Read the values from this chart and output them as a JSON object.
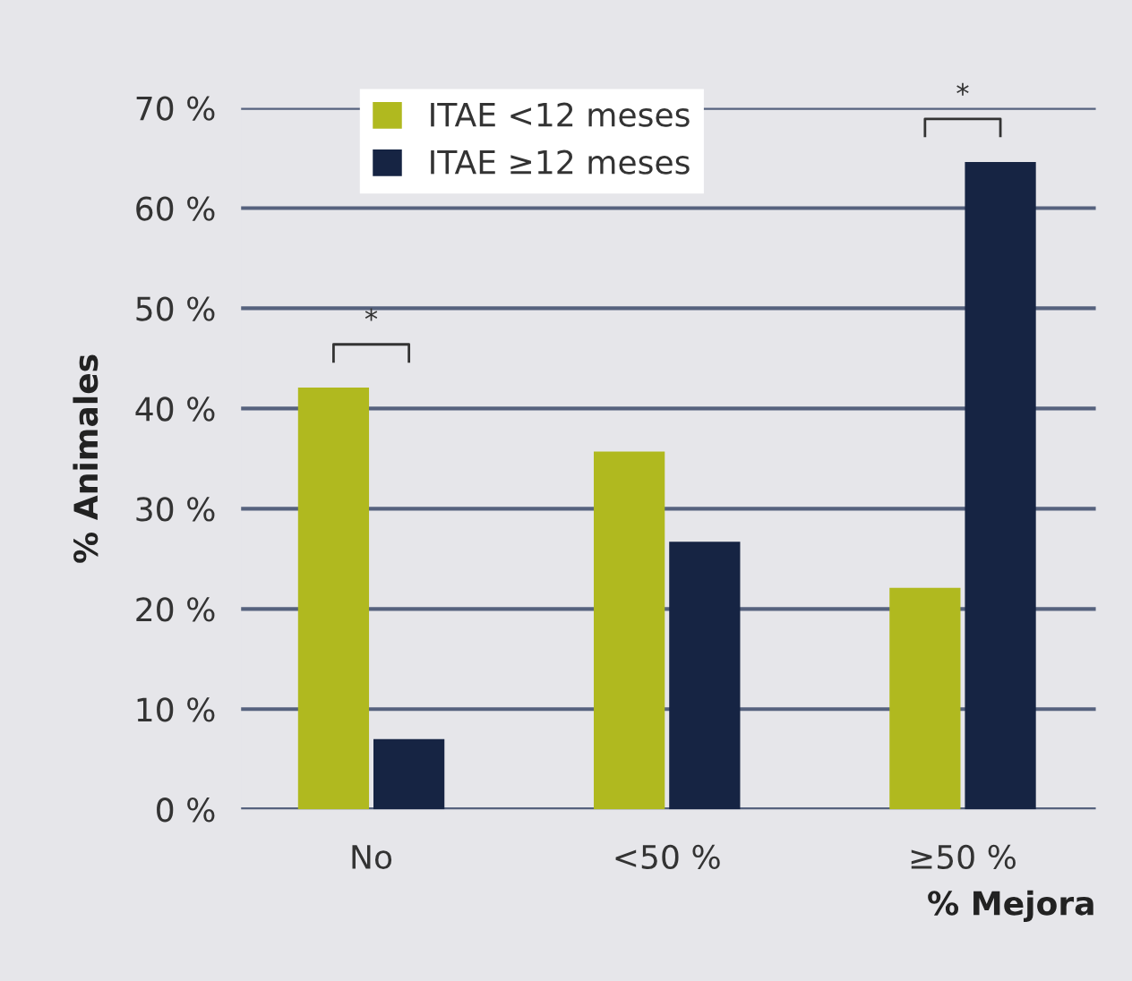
{
  "chart_data": {
    "type": "bar",
    "xlabel": "% Mejora",
    "ylabel": "% Animales",
    "categories": [
      "No",
      "<50 %",
      "≥50 %"
    ],
    "series": [
      {
        "name": "ITAE <12 meses",
        "color": "#b0b91f",
        "values": [
          42.1,
          35.7,
          22.1
        ]
      },
      {
        "name": "ITAE ≥12 meses",
        "color": "#162443",
        "values": [
          7.0,
          26.7,
          64.6
        ]
      }
    ],
    "ylim": [
      0,
      70
    ],
    "yticks": [
      {
        "value": 0,
        "label": "0 %"
      },
      {
        "value": 10,
        "label": "10 %"
      },
      {
        "value": 20,
        "label": "20 %"
      },
      {
        "value": 30,
        "label": "30 %"
      },
      {
        "value": 40,
        "label": "40 %"
      },
      {
        "value": 50,
        "label": "50 %"
      },
      {
        "value": 60,
        "label": "60 %"
      },
      {
        "value": 70,
        "label": "70 %"
      }
    ],
    "grid": "y",
    "legend": "top left",
    "annotations": [
      "*",
      "*"
    ]
  }
}
